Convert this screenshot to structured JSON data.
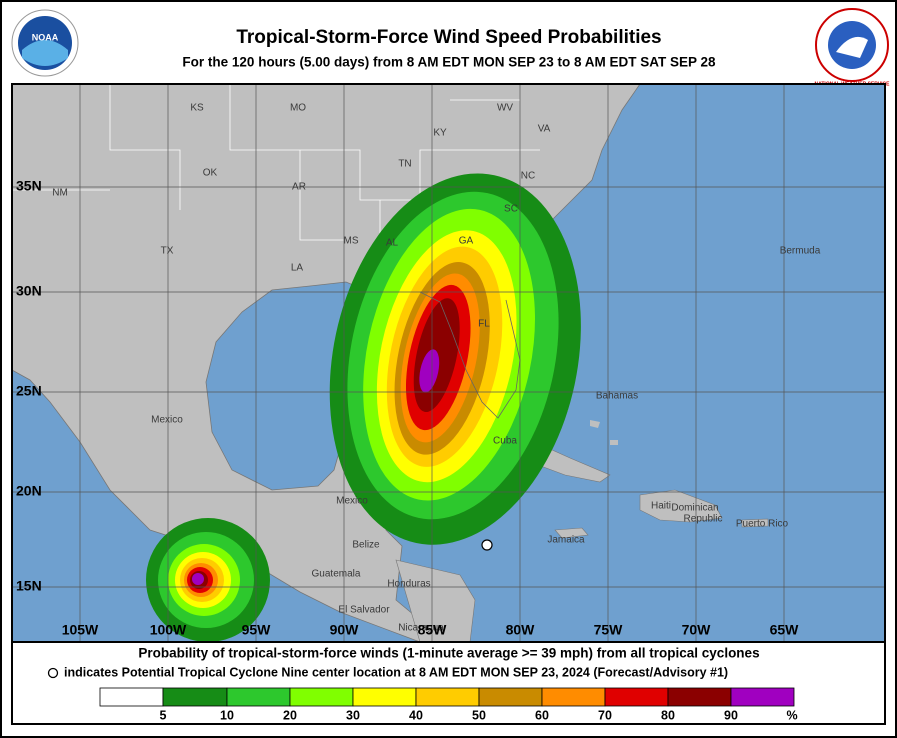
{
  "header": {
    "title": "Tropical-Storm-Force Wind Speed Probabilities",
    "subtitle": "For the 120 hours (5.00 days) from 8 AM EDT MON SEP 23 to 8 AM EDT SAT SEP 28"
  },
  "logos": {
    "left": "NOAA",
    "right": "NATIONAL WEATHER SERVICE"
  },
  "map": {
    "lat_labels": [
      "35N",
      "30N",
      "25N",
      "20N",
      "15N"
    ],
    "lon_labels": [
      "105W",
      "100W",
      "95W",
      "90W",
      "85W",
      "80W",
      "75W",
      "70W",
      "65W"
    ],
    "places": [
      "KS",
      "MO",
      "WV",
      "VA",
      "KY",
      "OK",
      "AR",
      "TN",
      "NC",
      "NM",
      "SC",
      "TX",
      "MS",
      "AL",
      "GA",
      "LA",
      "Bermuda",
      "FL",
      "Bahamas",
      "Mexico",
      "Cuba",
      "Mexico",
      "Haiti",
      "Dominican",
      "Republic",
      "Puerto Rico",
      "Jamaica",
      "Belize",
      "Guatemala",
      "Honduras",
      "El Salvador",
      "Nicaragua"
    ]
  },
  "footer": {
    "line1": "Probability of tropical-storm-force winds (1-minute average >= 39 mph) from all tropical cyclones",
    "line2": "indicates Potential Tropical Cyclone Nine center location at 8 AM EDT MON SEP 23, 2024 (Forecast/Advisory #1)"
  },
  "legend": {
    "labels": [
      "5",
      "10",
      "20",
      "30",
      "40",
      "50",
      "60",
      "70",
      "80",
      "90"
    ],
    "unit": "%"
  }
}
